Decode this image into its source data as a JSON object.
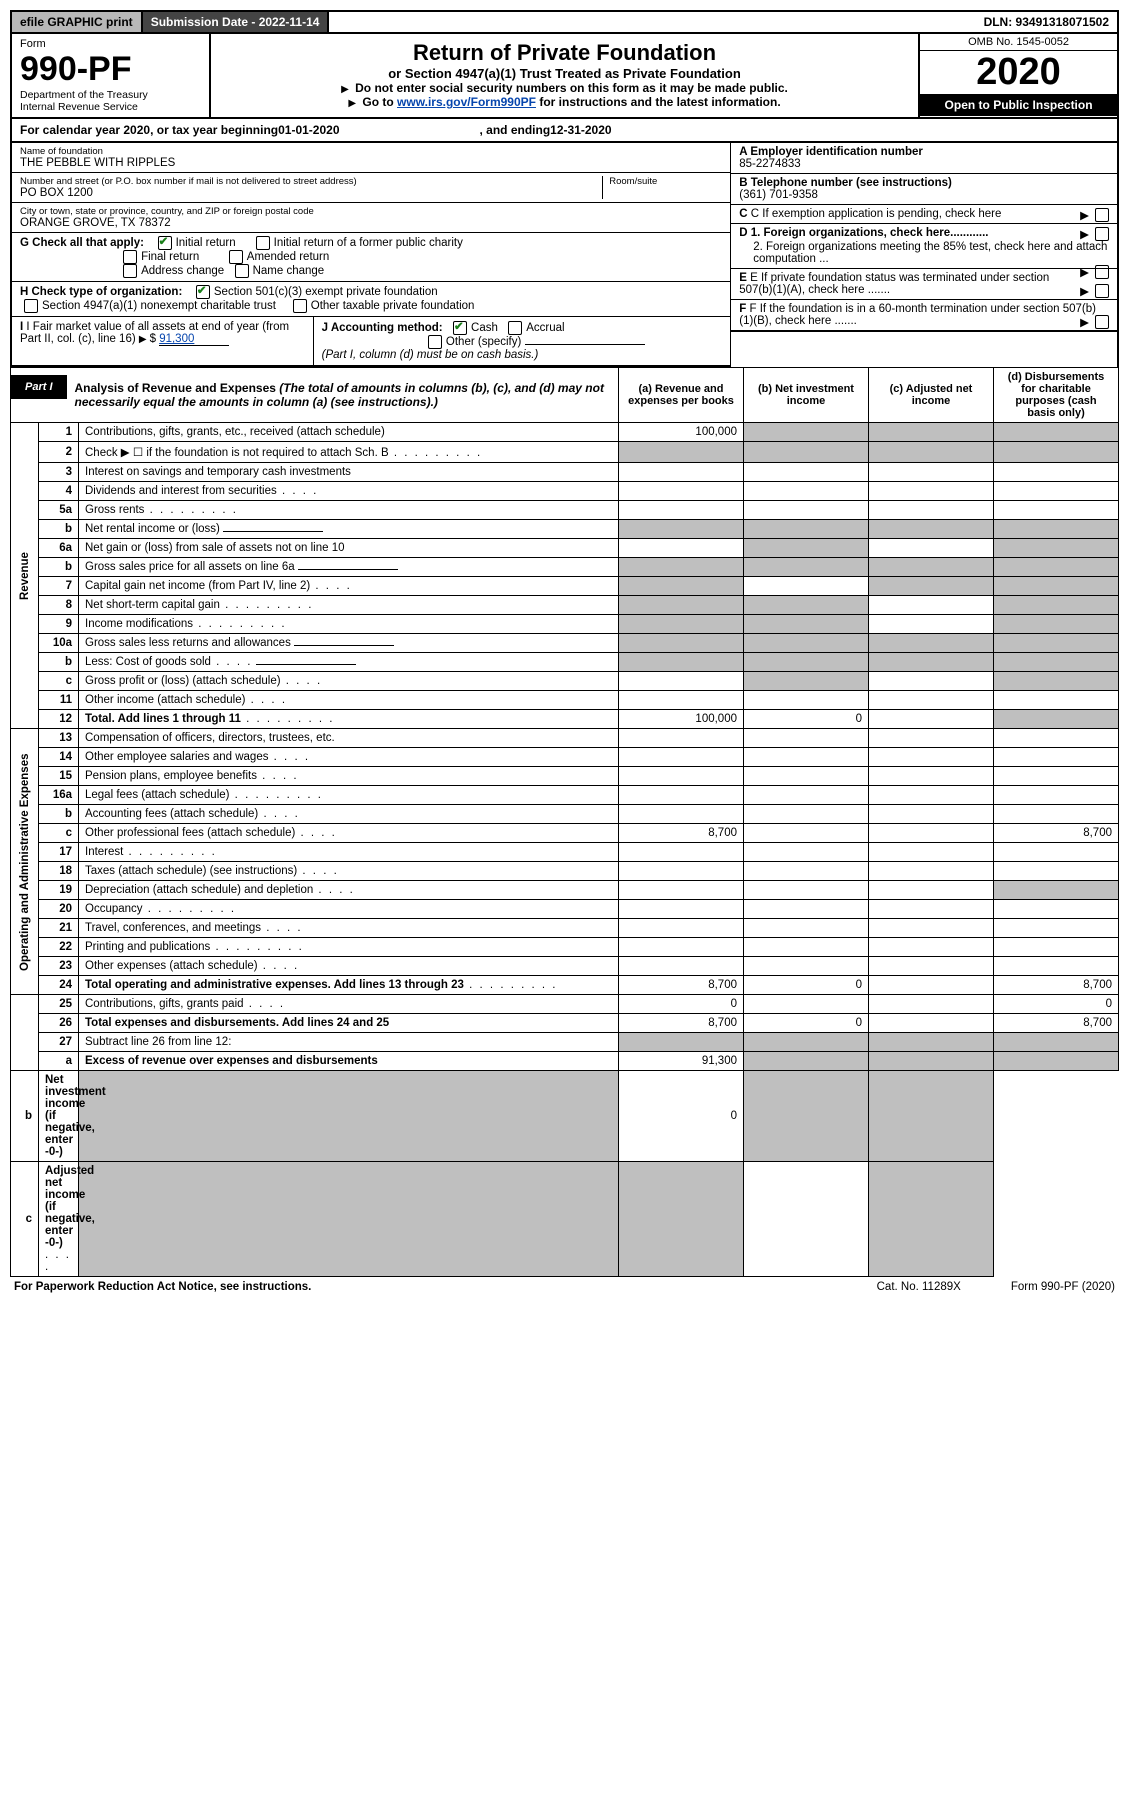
{
  "topbar": {
    "efile": "efile GRAPHIC print",
    "submission": "Submission Date - 2022-11-14",
    "dln": "DLN: 93491318071502"
  },
  "header": {
    "form_label": "Form",
    "form_no": "990-PF",
    "dept": "Department of the Treasury",
    "irs": "Internal Revenue Service",
    "title": "Return of Private Foundation",
    "subtitle": "or Section 4947(a)(1) Trust Treated as Private Foundation",
    "instr1": "Do not enter social security numbers on this form as it may be made public.",
    "instr2_pre": "Go to ",
    "instr2_link": "www.irs.gov/Form990PF",
    "instr2_post": " for instructions and the latest information.",
    "omb": "OMB No. 1545-0052",
    "year": "2020",
    "open": "Open to Public Inspection"
  },
  "calyear": {
    "prefix": "For calendar year 2020, or tax year beginning ",
    "begin": "01-01-2020",
    "mid": " , and ending ",
    "end": "12-31-2020"
  },
  "entity": {
    "name_lbl": "Name of foundation",
    "name": "THE PEBBLE WITH RIPPLES",
    "addr_lbl": "Number and street (or P.O. box number if mail is not delivered to street address)",
    "addr": "PO BOX 1200",
    "room_lbl": "Room/suite",
    "city_lbl": "City or town, state or province, country, and ZIP or foreign postal code",
    "city": "ORANGE GROVE, TX  78372",
    "a_lbl": "A Employer identification number",
    "a_val": "85-2274833",
    "b_lbl": "B Telephone number (see instructions)",
    "b_val": "(361) 701-9358",
    "c_lbl": "C If exemption application is pending, check here",
    "d1": "D 1. Foreign organizations, check here............",
    "d2": "2. Foreign organizations meeting the 85% test, check here and attach computation ...",
    "e": "E  If private foundation status was terminated under section 507(b)(1)(A), check here .......",
    "f": "F  If the foundation is in a 60-month termination under section 507(b)(1)(B), check here .......",
    "g_lbl": "G Check all that apply:",
    "g_opts": [
      "Initial return",
      "Initial return of a former public charity",
      "Final return",
      "Amended return",
      "Address change",
      "Name change"
    ],
    "h_lbl": "H Check type of organization:",
    "h_opts": [
      "Section 501(c)(3) exempt private foundation",
      "Section 4947(a)(1) nonexempt charitable trust",
      "Other taxable private foundation"
    ],
    "i_lbl": "I Fair market value of all assets at end of year (from Part II, col. (c), line 16)",
    "i_val": "91,300",
    "j_lbl": "J Accounting method:",
    "j_opts": [
      "Cash",
      "Accrual",
      "Other (specify)"
    ],
    "j_note": "(Part I, column (d) must be on cash basis.)"
  },
  "part1": {
    "badge": "Part I",
    "title": "Analysis of Revenue and Expenses",
    "title_note": " (The total of amounts in columns (b), (c), and (d) may not necessarily equal the amounts in column (a) (see instructions).)",
    "cols": {
      "a": "(a) Revenue and expenses per books",
      "b": "(b) Net investment income",
      "c": "(c) Adjusted net income",
      "d": "(d) Disbursements for charitable purposes (cash basis only)"
    }
  },
  "groups": {
    "revenue": "Revenue",
    "opex": "Operating and Administrative Expenses"
  },
  "rows": [
    {
      "n": "1",
      "d": "Contributions, gifts, grants, etc., received (attach schedule)",
      "a": "100,000",
      "shade": [
        "b",
        "c",
        "d"
      ]
    },
    {
      "n": "2",
      "d": "Check ▶ ☐ if the foundation is not required to attach Sch. B",
      "dots": true,
      "shade": [
        "a",
        "b",
        "c",
        "d"
      ]
    },
    {
      "n": "3",
      "d": "Interest on savings and temporary cash investments"
    },
    {
      "n": "4",
      "d": "Dividends and interest from securities",
      "dotsS": true
    },
    {
      "n": "5a",
      "d": "Gross rents",
      "dots": true
    },
    {
      "n": "b",
      "d": "Net rental income or (loss)",
      "ul": true,
      "shade": [
        "a",
        "b",
        "c",
        "d"
      ]
    },
    {
      "n": "6a",
      "d": "Net gain or (loss) from sale of assets not on line 10",
      "shade": [
        "b",
        "d"
      ]
    },
    {
      "n": "b",
      "d": "Gross sales price for all assets on line 6a",
      "ul": true,
      "shade": [
        "a",
        "b",
        "c",
        "d"
      ]
    },
    {
      "n": "7",
      "d": "Capital gain net income (from Part IV, line 2)",
      "dotsS": true,
      "shade": [
        "a",
        "c",
        "d"
      ]
    },
    {
      "n": "8",
      "d": "Net short-term capital gain",
      "dots": true,
      "shade": [
        "a",
        "b",
        "d"
      ]
    },
    {
      "n": "9",
      "d": "Income modifications",
      "dots": true,
      "shade": [
        "a",
        "b",
        "d"
      ]
    },
    {
      "n": "10a",
      "d": "Gross sales less returns and allowances",
      "ul": true,
      "shade": [
        "a",
        "b",
        "c",
        "d"
      ]
    },
    {
      "n": "b",
      "d": "Less: Cost of goods sold",
      "dotsS": true,
      "ul": true,
      "shade": [
        "a",
        "b",
        "c",
        "d"
      ]
    },
    {
      "n": "c",
      "d": "Gross profit or (loss) (attach schedule)",
      "dotsS": true,
      "shade": [
        "b",
        "d"
      ]
    },
    {
      "n": "11",
      "d": "Other income (attach schedule)",
      "dotsS": true
    },
    {
      "n": "12",
      "d": "Total. Add lines 1 through 11",
      "dots": true,
      "bold": true,
      "a": "100,000",
      "b": "0",
      "shade": [
        "d"
      ]
    },
    {
      "n": "13",
      "d": "Compensation of officers, directors, trustees, etc."
    },
    {
      "n": "14",
      "d": "Other employee salaries and wages",
      "dotsS": true
    },
    {
      "n": "15",
      "d": "Pension plans, employee benefits",
      "dotsS": true
    },
    {
      "n": "16a",
      "d": "Legal fees (attach schedule)",
      "dots": true
    },
    {
      "n": "b",
      "d": "Accounting fees (attach schedule)",
      "dotsS": true
    },
    {
      "n": "c",
      "d": "Other professional fees (attach schedule)",
      "dotsS": true,
      "a": "8,700",
      "dd": "8,700"
    },
    {
      "n": "17",
      "d": "Interest",
      "dots": true
    },
    {
      "n": "18",
      "d": "Taxes (attach schedule) (see instructions)",
      "dotsS": true
    },
    {
      "n": "19",
      "d": "Depreciation (attach schedule) and depletion",
      "dotsS": true,
      "shade": [
        "d"
      ]
    },
    {
      "n": "20",
      "d": "Occupancy",
      "dots": true
    },
    {
      "n": "21",
      "d": "Travel, conferences, and meetings",
      "dotsS": true
    },
    {
      "n": "22",
      "d": "Printing and publications",
      "dots": true
    },
    {
      "n": "23",
      "d": "Other expenses (attach schedule)",
      "dotsS": true
    },
    {
      "n": "24",
      "d": "Total operating and administrative expenses. Add lines 13 through 23",
      "dots": true,
      "bold": true,
      "a": "8,700",
      "b": "0",
      "dd": "8,700"
    },
    {
      "n": "25",
      "d": "Contributions, gifts, grants paid",
      "dotsS": true,
      "a": "0",
      "dd": "0"
    },
    {
      "n": "26",
      "d": "Total expenses and disbursements. Add lines 24 and 25",
      "bold": true,
      "a": "8,700",
      "b": "0",
      "dd": "8,700"
    },
    {
      "n": "27",
      "d": "Subtract line 26 from line 12:",
      "shade": [
        "a",
        "b",
        "c",
        "d"
      ]
    },
    {
      "n": "a",
      "d": "Excess of revenue over expenses and disbursements",
      "bold": true,
      "a": "91,300",
      "shade": [
        "b",
        "c",
        "d"
      ]
    },
    {
      "n": "b",
      "d": "Net investment income (if negative, enter -0-)",
      "bold": true,
      "b": "0",
      "shade": [
        "a",
        "c",
        "d"
      ]
    },
    {
      "n": "c",
      "d": "Adjusted net income (if negative, enter -0-)",
      "dotsS": true,
      "bold": true,
      "shade": [
        "a",
        "b",
        "d"
      ]
    }
  ],
  "footer": {
    "pra": "For Paperwork Reduction Act Notice, see instructions.",
    "cat": "Cat. No. 11289X",
    "form": "Form 990-PF (2020)"
  }
}
